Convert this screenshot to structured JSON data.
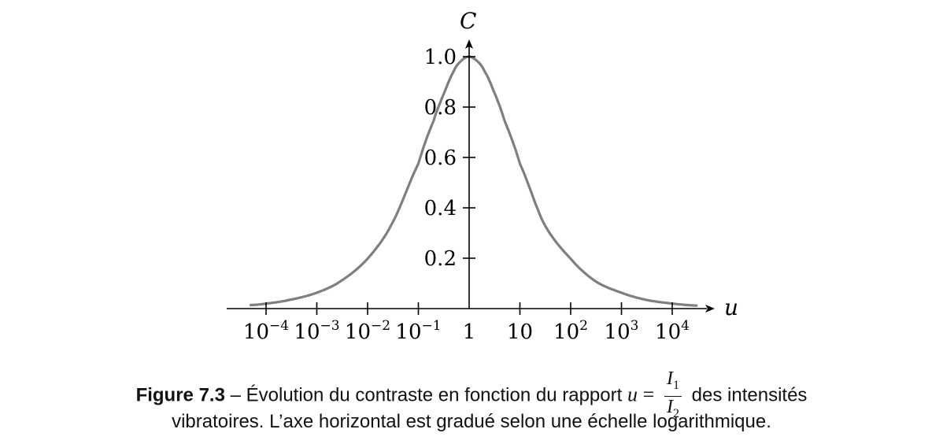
{
  "chart_data": {
    "type": "line",
    "x_scale": "log",
    "xlabel": "u",
    "ylabel": "C",
    "xlim": [
      5e-05,
      30000
    ],
    "ylim": [
      0,
      1.0
    ],
    "x_ticks": [
      {
        "value": 0.0001,
        "base": "10",
        "exp": "−4"
      },
      {
        "value": 0.001,
        "base": "10",
        "exp": "−3"
      },
      {
        "value": 0.01,
        "base": "10",
        "exp": "−2"
      },
      {
        "value": 0.1,
        "base": "10",
        "exp": "−1"
      },
      {
        "value": 1,
        "base": "1",
        "exp": ""
      },
      {
        "value": 10,
        "base": "10",
        "exp": ""
      },
      {
        "value": 100,
        "base": "10",
        "exp": "2"
      },
      {
        "value": 1000,
        "base": "10",
        "exp": "3"
      },
      {
        "value": 10000,
        "base": "10",
        "exp": "4"
      }
    ],
    "y_ticks": [
      {
        "value": 0.2,
        "label": "0.2"
      },
      {
        "value": 0.4,
        "label": "0.4"
      },
      {
        "value": 0.6,
        "label": "0.6"
      },
      {
        "value": 0.8,
        "label": "0.8"
      },
      {
        "value": 1.0,
        "label": "1.0"
      }
    ],
    "series": [
      {
        "x": [
          5e-05,
          0.0001,
          0.0003,
          0.001,
          0.003,
          0.01,
          0.03,
          0.1,
          0.2,
          0.3,
          0.5,
          0.7,
          1,
          1.5,
          2,
          3,
          5,
          10,
          30,
          100,
          300,
          1000,
          3000,
          10000,
          30000
        ],
        "y": [
          0.014,
          0.02,
          0.035,
          0.063,
          0.11,
          0.198,
          0.336,
          0.575,
          0.745,
          0.842,
          0.943,
          0.984,
          1.0,
          0.98,
          0.943,
          0.866,
          0.745,
          0.575,
          0.336,
          0.198,
          0.11,
          0.063,
          0.035,
          0.02,
          0.012
        ]
      }
    ],
    "color": "#7f7f7f"
  },
  "caption": {
    "label": "Figure 7.3",
    "dash": "–",
    "text_before": "Évolution du contraste en fonction du rapport",
    "var": "u",
    "equals": "=",
    "numerator": "I",
    "numerator_sub": "1",
    "denominator": "I",
    "denominator_sub": "2",
    "text_after": "des intensités",
    "line2": "vibratoires. L’axe horizontal est gradué selon une échelle logarithmique."
  }
}
